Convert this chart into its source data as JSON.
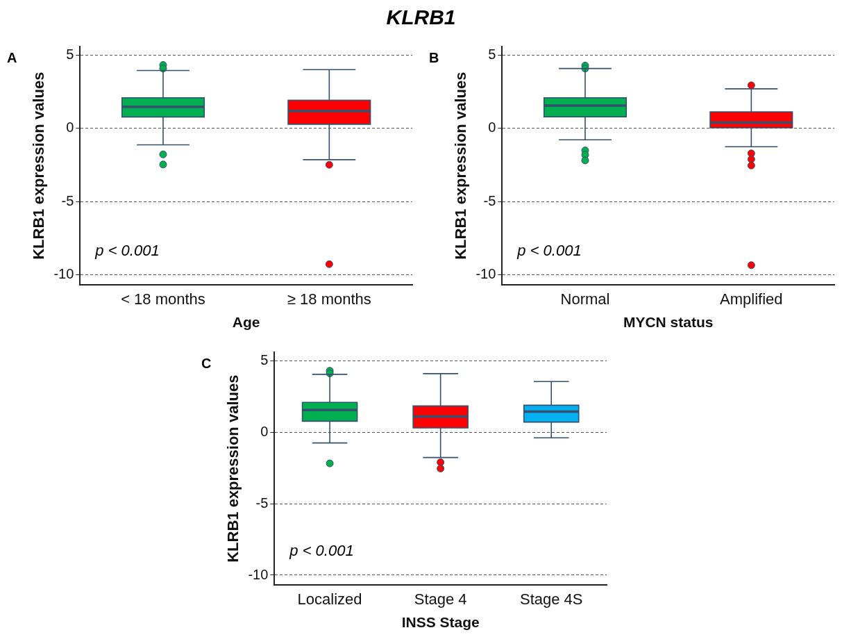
{
  "chart_data": [
    {
      "type": "box",
      "title": "KLRB1",
      "xlabel": "Age",
      "ylabel": "KLRB1 expression values",
      "annotations": [
        "A",
        "p < 0.001"
      ],
      "categories": [
        "< 18 months",
        "≥ 18 months"
      ],
      "colors": [
        "#00b050",
        "#ff0000"
      ],
      "boxes": [
        {
          "low": -1.12,
          "q1": 0.79,
          "median": 1.48,
          "q3": 2.1,
          "high": 3.96,
          "outliers": [
            4.34,
            4.1,
            -1.77,
            -2.46
          ]
        },
        {
          "low": -2.13,
          "q1": 0.29,
          "median": 1.2,
          "q3": 1.93,
          "high": 4.02,
          "outliers": [
            -2.48,
            -9.27
          ]
        }
      ],
      "ylim": [
        -10.7,
        5.6
      ],
      "yticks": [
        -10,
        -5,
        0,
        5
      ],
      "grid": "y"
    },
    {
      "type": "box",
      "xlabel": "MYCN status",
      "ylabel": "KLRB1 expression values",
      "annotations": [
        "B",
        "p < 0.001"
      ],
      "categories": [
        "Normal",
        "Amplified"
      ],
      "colors": [
        "#00b050",
        "#ff0000"
      ],
      "boxes": [
        {
          "low": -0.77,
          "q1": 0.8,
          "median": 1.57,
          "q3": 2.1,
          "high": 4.1,
          "outliers": [
            4.3,
            4.1,
            -1.5,
            -1.8,
            -2.18
          ]
        },
        {
          "low": -1.25,
          "q1": 0.05,
          "median": 0.4,
          "q3": 1.14,
          "high": 2.71,
          "outliers": [
            2.95,
            -1.7,
            -2.1,
            -2.53,
            -9.34
          ]
        }
      ],
      "ylim": [
        -10.7,
        5.6
      ],
      "yticks": [
        -10,
        -5,
        0,
        5
      ],
      "grid": "y"
    },
    {
      "type": "box",
      "xlabel": "INSS Stage",
      "ylabel": "KLRB1 expression values",
      "annotations": [
        "C",
        "p < 0.001"
      ],
      "categories": [
        "Localized",
        "Stage 4",
        "Stage 4S"
      ],
      "colors": [
        "#00b050",
        "#ff0000",
        "#00b0f0"
      ],
      "boxes": [
        {
          "low": -0.75,
          "q1": 0.77,
          "median": 1.55,
          "q3": 2.09,
          "high": 4.05,
          "outliers": [
            4.3,
            4.12,
            -2.18
          ]
        },
        {
          "low": -1.77,
          "q1": 0.3,
          "median": 1.11,
          "q3": 1.84,
          "high": 4.1,
          "outliers": [
            -2.1,
            -2.54
          ]
        },
        {
          "low": -0.39,
          "q1": 0.71,
          "median": 1.45,
          "q3": 1.89,
          "high": 3.55
        }
      ],
      "ylim": [
        -10.7,
        5.6
      ],
      "yticks": [
        -10,
        -5,
        0,
        5
      ],
      "grid": "y"
    }
  ]
}
